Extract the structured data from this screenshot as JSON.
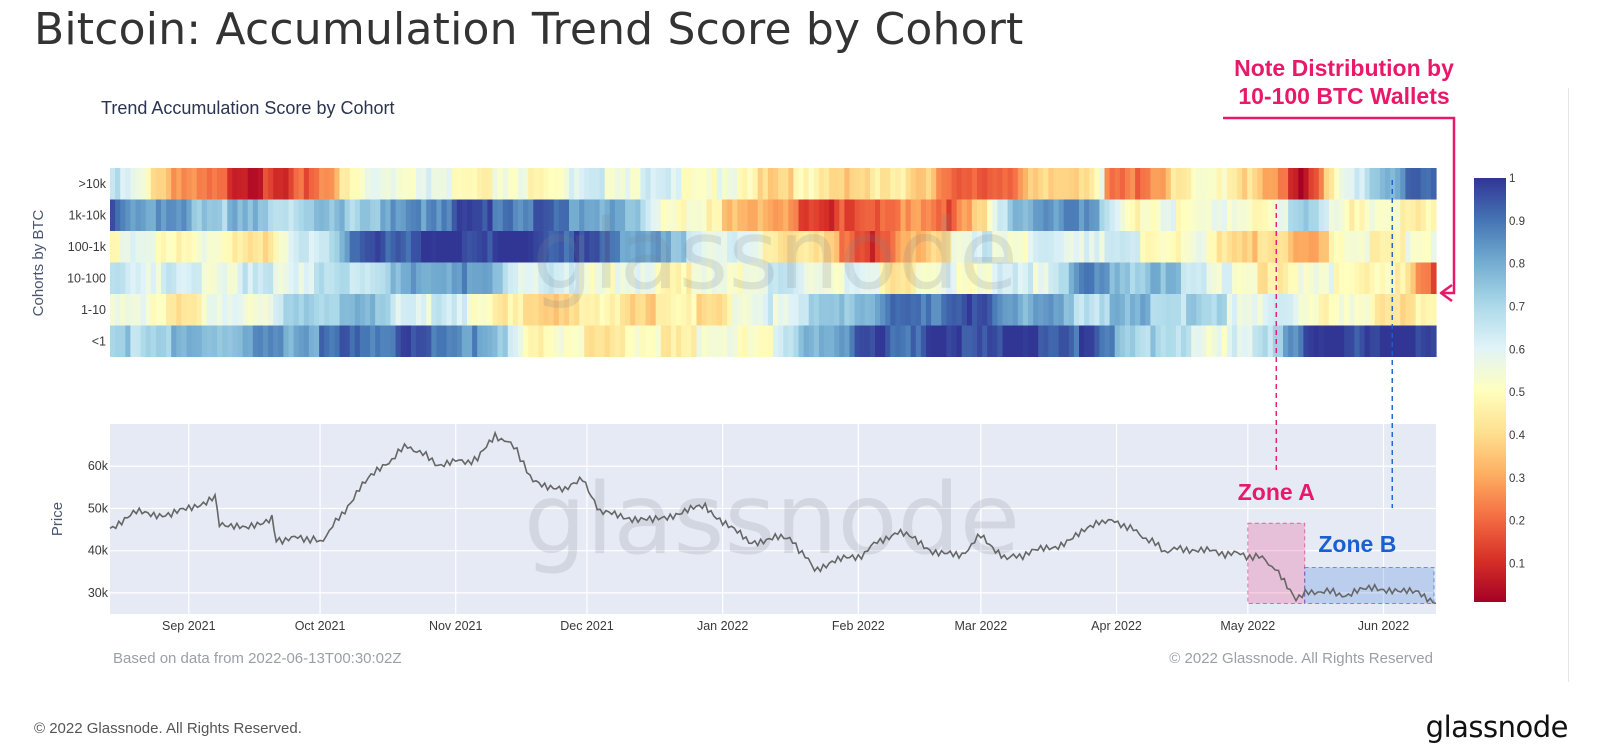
{
  "title": "Bitcoin: Accumulation Trend Score by Cohort",
  "footer": {
    "copyright": "© 2022 Glassnode. All Rights Reserved.",
    "brand": "glassnode"
  },
  "colors": {
    "accent_pink": "#e8196b",
    "accent_blue": "#1a5fd0",
    "plot_bg": "#e5eaf4",
    "price_line": "#666666",
    "colorscale": [
      "#a50026",
      "#d73027",
      "#f46d43",
      "#fdae61",
      "#fee090",
      "#ffffbf",
      "#e0f3f8",
      "#abd9e9",
      "#74add1",
      "#4575b4",
      "#313695"
    ]
  },
  "chart_data": [
    {
      "type": "heatmap",
      "title": "Trend Accumulation Score by Cohort",
      "ylabel": "Cohorts by BTC",
      "rows": [
        ">10k",
        "1k-10k",
        "100-1k",
        "10-100",
        "1-10",
        "<1"
      ],
      "x_range": [
        "2021-08-14",
        "2022-06-13"
      ],
      "colorbar": {
        "range": [
          0,
          1
        ],
        "ticks": [
          "0.1",
          "0.2",
          "0.3",
          "0.4",
          "0.5",
          "0.6",
          "0.7",
          "0.8",
          "0.9",
          "1"
        ]
      },
      "segments": [
        {
          "row": ">10k",
          "values": [
            [
              0,
              0.65
            ],
            [
              0.03,
              0.45
            ],
            [
              0.06,
              0.2
            ],
            [
              0.13,
              0.05
            ],
            [
              0.17,
              0.35
            ],
            [
              0.2,
              0.6
            ],
            [
              0.3,
              0.5
            ],
            [
              0.38,
              0.6
            ],
            [
              0.45,
              0.55
            ],
            [
              0.5,
              0.4
            ],
            [
              0.53,
              0.45
            ],
            [
              0.5,
              0.5
            ],
            [
              0.51,
              0.4
            ],
            [
              0.52,
              0.6
            ],
            [
              0.53,
              0.45
            ],
            [
              0.51,
              0.4
            ],
            [
              0.62,
              0.4
            ],
            [
              0.64,
              0.1
            ],
            [
              0.75,
              0.5
            ],
            [
              0.7,
              0.55
            ],
            [
              0.76,
              0.15
            ],
            [
              0.84,
              0.55
            ],
            [
              0.87,
              0.3
            ],
            [
              0.9,
              0.05
            ],
            [
              0.93,
              0.5
            ],
            [
              0.96,
              0.8
            ],
            [
              1,
              0.9
            ]
          ]
        },
        {
          "row": "1k-10k",
          "values": [
            [
              0,
              0.95
            ],
            [
              0.02,
              0.85
            ],
            [
              0.08,
              0.75
            ],
            [
              0.15,
              0.7
            ],
            [
              0.22,
              0.8
            ],
            [
              0.26,
              0.95
            ],
            [
              0.33,
              0.9
            ],
            [
              0.38,
              0.8
            ],
            [
              0.42,
              0.55
            ],
            [
              0.46,
              0.4
            ],
            [
              0.52,
              0.2
            ],
            [
              0.56,
              0.1
            ],
            [
              0.6,
              0.3
            ],
            [
              0.63,
              0.15
            ],
            [
              0.66,
              0.45
            ],
            [
              0.7,
              0.9
            ],
            [
              0.74,
              0.8
            ],
            [
              0.78,
              0.45
            ],
            [
              0.82,
              0.6
            ],
            [
              0.86,
              0.45
            ],
            [
              0.9,
              0.7
            ],
            [
              0.94,
              0.5
            ],
            [
              1,
              0.5
            ]
          ]
        },
        {
          "row": "100-1k",
          "values": [
            [
              0,
              0.55
            ],
            [
              0.06,
              0.5
            ],
            [
              0.12,
              0.45
            ],
            [
              0.2,
              0.95
            ],
            [
              0.3,
              1
            ],
            [
              0.38,
              0.9
            ],
            [
              0.42,
              0.75
            ],
            [
              0.46,
              0.6
            ],
            [
              0.5,
              0.5
            ],
            [
              0.54,
              0.35
            ],
            [
              0.58,
              0.1
            ],
            [
              0.62,
              0.4
            ],
            [
              0.66,
              0.6
            ],
            [
              0.7,
              0.55
            ],
            [
              0.74,
              0.65
            ],
            [
              0.78,
              0.55
            ],
            [
              0.82,
              0.5
            ],
            [
              0.86,
              0.4
            ],
            [
              0.9,
              0.3
            ],
            [
              0.94,
              0.5
            ],
            [
              1,
              0.5
            ]
          ]
        },
        {
          "row": "10-100",
          "values": [
            [
              0,
              0.65
            ],
            [
              0.05,
              0.6
            ],
            [
              0.12,
              0.6
            ],
            [
              0.2,
              0.7
            ],
            [
              0.26,
              0.85
            ],
            [
              0.32,
              0.6
            ],
            [
              0.38,
              0.55
            ],
            [
              0.44,
              0.5
            ],
            [
              0.5,
              0.6
            ],
            [
              0.56,
              0.55
            ],
            [
              0.6,
              0.45
            ],
            [
              0.64,
              0.55
            ],
            [
              0.7,
              0.6
            ],
            [
              0.74,
              0.85
            ],
            [
              0.78,
              0.75
            ],
            [
              0.82,
              0.7
            ],
            [
              0.86,
              0.45
            ],
            [
              0.9,
              0.5
            ],
            [
              0.94,
              0.55
            ],
            [
              0.98,
              0.4
            ],
            [
              1,
              0.2
            ]
          ]
        },
        {
          "row": "1-10",
          "values": [
            [
              0,
              0.6
            ],
            [
              0.04,
              0.45
            ],
            [
              0.1,
              0.55
            ],
            [
              0.18,
              0.8
            ],
            [
              0.22,
              0.65
            ],
            [
              0.28,
              0.55
            ],
            [
              0.32,
              0.35
            ],
            [
              0.36,
              0.45
            ],
            [
              0.42,
              0.4
            ],
            [
              0.46,
              0.45
            ],
            [
              0.5,
              0.6
            ],
            [
              0.54,
              0.7
            ],
            [
              0.58,
              0.85
            ],
            [
              0.64,
              0.95
            ],
            [
              0.7,
              0.8
            ],
            [
              0.74,
              0.7
            ],
            [
              0.78,
              0.75
            ],
            [
              0.82,
              0.7
            ],
            [
              0.86,
              0.6
            ],
            [
              0.9,
              0.55
            ],
            [
              0.94,
              0.5
            ],
            [
              1,
              0.4
            ]
          ]
        },
        {
          "row": "<1",
          "values": [
            [
              0,
              0.7
            ],
            [
              0.06,
              0.75
            ],
            [
              0.12,
              0.8
            ],
            [
              0.18,
              0.9
            ],
            [
              0.24,
              0.95
            ],
            [
              0.28,
              0.8
            ],
            [
              0.32,
              0.5
            ],
            [
              0.38,
              0.45
            ],
            [
              0.44,
              0.5
            ],
            [
              0.5,
              0.55
            ],
            [
              0.54,
              0.85
            ],
            [
              0.6,
              0.95
            ],
            [
              0.68,
              1
            ],
            [
              0.74,
              0.95
            ],
            [
              0.78,
              0.7
            ],
            [
              0.82,
              0.6
            ],
            [
              0.86,
              0.55
            ],
            [
              0.9,
              0.95
            ],
            [
              0.94,
              1
            ],
            [
              1,
              1
            ]
          ]
        }
      ]
    },
    {
      "type": "line",
      "ylabel": "Price",
      "ylim": [
        25000,
        70000
      ],
      "yticks": [
        "30k",
        "40k",
        "50k",
        "60k"
      ],
      "xticks": [
        "Sep 2021",
        "Oct 2021",
        "Nov 2021",
        "Dec 2021",
        "Jan 2022",
        "Feb 2022",
        "Mar 2022",
        "Apr 2022",
        "May 2022",
        "Jun 2022"
      ],
      "series": [
        {
          "values": [
            [
              "2021-08-14",
              45500
            ],
            [
              "2021-08-20",
              49000
            ],
            [
              "2021-08-28",
              48500
            ],
            [
              "2021-09-01",
              50000
            ],
            [
              "2021-09-07",
              52700
            ],
            [
              "2021-09-08",
              46800
            ],
            [
              "2021-09-14",
              45000
            ],
            [
              "2021-09-20",
              48000
            ],
            [
              "2021-09-21",
              42700
            ],
            [
              "2021-09-28",
              43000
            ],
            [
              "2021-10-01",
              42000
            ],
            [
              "2021-10-06",
              48500
            ],
            [
              "2021-10-10",
              55000
            ],
            [
              "2021-10-16",
              60500
            ],
            [
              "2021-10-21",
              65000
            ],
            [
              "2021-10-28",
              60500
            ],
            [
              "2021-11-01",
              61000
            ],
            [
              "2021-11-06",
              61500
            ],
            [
              "2021-11-10",
              67500
            ],
            [
              "2021-11-15",
              64000
            ],
            [
              "2021-11-18",
              57000
            ],
            [
              "2021-11-26",
              54000
            ],
            [
              "2021-11-30",
              57500
            ],
            [
              "2021-12-04",
              49000
            ],
            [
              "2021-12-10",
              48000
            ],
            [
              "2021-12-16",
              47000
            ],
            [
              "2021-12-22",
              49000
            ],
            [
              "2021-12-28",
              50500
            ],
            [
              "2022-01-01",
              47000
            ],
            [
              "2022-01-07",
              42000
            ],
            [
              "2022-01-13",
              43000
            ],
            [
              "2022-01-17",
              42500
            ],
            [
              "2022-01-22",
              35500
            ],
            [
              "2022-01-26",
              37500
            ],
            [
              "2022-02-01",
              38500
            ],
            [
              "2022-02-06",
              42500
            ],
            [
              "2022-02-10",
              44500
            ],
            [
              "2022-02-14",
              42500
            ],
            [
              "2022-02-18",
              40000
            ],
            [
              "2022-02-24",
              38500
            ],
            [
              "2022-03-01",
              43500
            ],
            [
              "2022-03-07",
              38000
            ],
            [
              "2022-03-12",
              39500
            ],
            [
              "2022-03-18",
              41000
            ],
            [
              "2022-03-24",
              44000
            ],
            [
              "2022-03-28",
              47200
            ],
            [
              "2022-04-02",
              46500
            ],
            [
              "2022-04-07",
              43500
            ],
            [
              "2022-04-12",
              40000
            ],
            [
              "2022-04-17",
              40500
            ],
            [
              "2022-04-23",
              39700
            ],
            [
              "2022-04-30",
              39000
            ],
            [
              "2022-05-05",
              38000
            ],
            [
              "2022-05-08",
              34500
            ],
            [
              "2022-05-12",
              29000
            ],
            [
              "2022-05-17",
              30500
            ],
            [
              "2022-05-24",
              29500
            ],
            [
              "2022-05-30",
              31500
            ],
            [
              "2022-06-05",
              30000
            ],
            [
              "2022-06-09",
              30500
            ],
            [
              "2022-06-13",
              27500
            ]
          ]
        }
      ],
      "watermark": "glassnode"
    }
  ],
  "panel_meta": {
    "source_note": "Based on data from 2022-06-13T00:30:02Z",
    "copyright": "© 2022 Glassnode. All Rights Reserved"
  },
  "annotations": {
    "note_line1": "Note Distribution by",
    "note_line2": "10-100 BTC Wallets",
    "zone_a": "Zone A",
    "zone_b": "Zone B"
  }
}
